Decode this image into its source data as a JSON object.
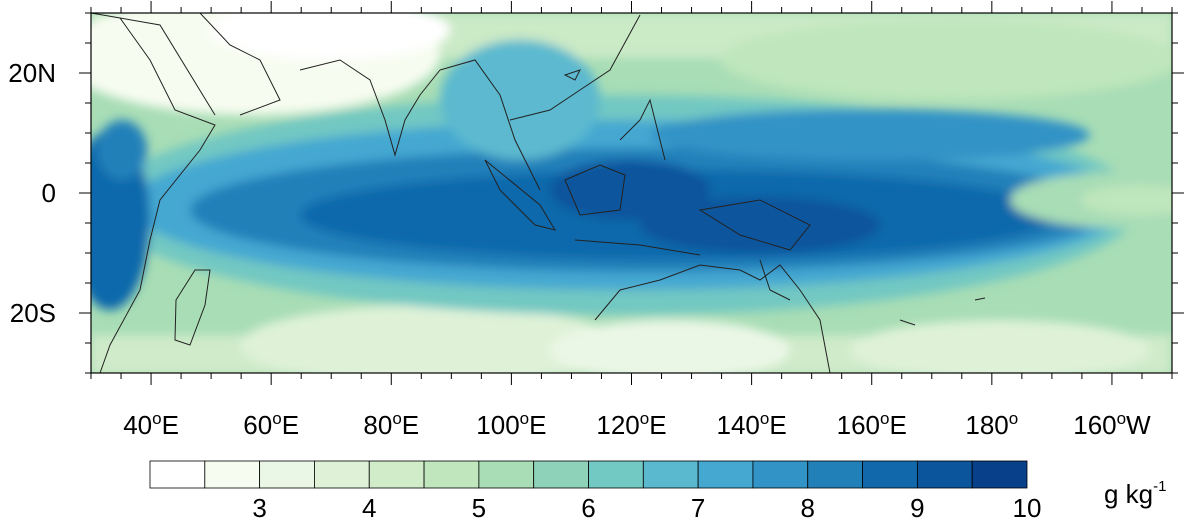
{
  "map": {
    "lon_labels": [
      {
        "lon": 40,
        "num": "40",
        "suffix": "E"
      },
      {
        "lon": 60,
        "num": "60",
        "suffix": "E"
      },
      {
        "lon": 80,
        "num": "80",
        "suffix": "E"
      },
      {
        "lon": 100,
        "num": "100",
        "suffix": "E"
      },
      {
        "lon": 120,
        "num": "120",
        "suffix": "E"
      },
      {
        "lon": 140,
        "num": "140",
        "suffix": "E"
      },
      {
        "lon": 160,
        "num": "160",
        "suffix": "E"
      },
      {
        "lon": 180,
        "num": "180",
        "suffix": ""
      },
      {
        "lon": 200,
        "num": "160",
        "suffix": "W"
      }
    ],
    "lat_labels": [
      {
        "lat": 20,
        "text": "20N"
      },
      {
        "lat": 0,
        "text": "0"
      },
      {
        "lat": -20,
        "text": "20S"
      }
    ],
    "lon_range": [
      30,
      210
    ],
    "lat_range": [
      -30,
      30
    ],
    "degree_symbol": "o"
  },
  "colorbar": {
    "colors": [
      "#ffffff",
      "#f7fcf0",
      "#ebf7e6",
      "#dff2d8",
      "#d0ecc9",
      "#bfe6bc",
      "#a8ddb5",
      "#8ed3b9",
      "#72c8c2",
      "#5bb9cf",
      "#44a8d1",
      "#3193c6",
      "#2280b9",
      "#1169ab",
      "#0b559d",
      "#08408a"
    ],
    "labels": [
      "3",
      "4",
      "5",
      "6",
      "7",
      "8",
      "9",
      "10"
    ],
    "unit": "g kg",
    "unit_sup": "-1"
  }
}
